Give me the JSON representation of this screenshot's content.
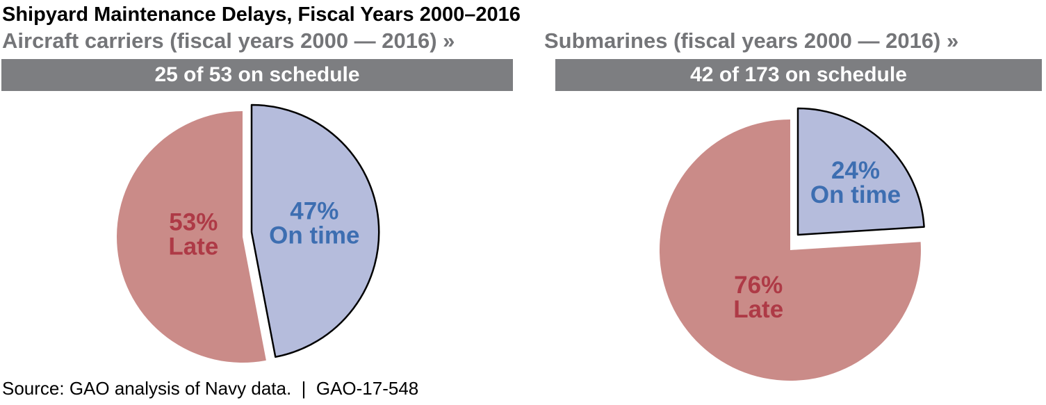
{
  "page": {
    "title": "Shipyard Maintenance Delays, Fiscal Years 2000–2016",
    "source_note": "Source: GAO analysis of Navy data.  |  GAO-17-548"
  },
  "colors": {
    "on_time_slice": "#b5bcdc",
    "late_slice": "#ca8b88",
    "on_time_text": "#3d6eb1",
    "late_text": "#ae3a46",
    "banner_bg": "#7d7e81",
    "banner_text": "#ffffff",
    "subtitle_text": "#747578",
    "title_text": "#000000",
    "slice_outline": "#000000"
  },
  "chart_data": [
    {
      "type": "pie",
      "panel": "aircraft-carriers",
      "title": "Aircraft carriers (fiscal years 2000 — 2016) »",
      "banner": "25 of 53 on schedule",
      "on_schedule": 25,
      "total": 53,
      "start_angle_deg": 0,
      "direction": "clockwise",
      "slices": [
        {
          "label": "On time",
          "pct": 47,
          "color": "#b5bcdc",
          "label_color": "#3d6eb1",
          "outlined": true,
          "exploded": true
        },
        {
          "label": "Late",
          "pct": 53,
          "color": "#ca8b88",
          "label_color": "#ae3a46",
          "outlined": false,
          "exploded": false
        }
      ]
    },
    {
      "type": "pie",
      "panel": "submarines",
      "title": "Submarines (fiscal years 2000 — 2016) »",
      "banner": "42 of 173 on schedule",
      "on_schedule": 42,
      "total": 173,
      "start_angle_deg": 0,
      "direction": "clockwise",
      "slices": [
        {
          "label": "On time",
          "pct": 24,
          "color": "#b5bcdc",
          "label_color": "#3d6eb1",
          "outlined": true,
          "exploded": true
        },
        {
          "label": "Late",
          "pct": 76,
          "color": "#ca8b88",
          "label_color": "#ae3a46",
          "outlined": false,
          "exploded": false
        }
      ]
    }
  ]
}
